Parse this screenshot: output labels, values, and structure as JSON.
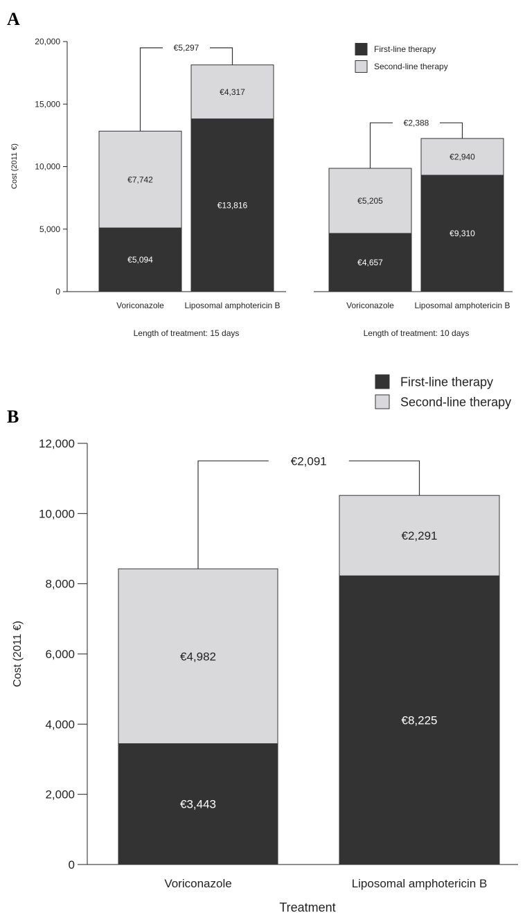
{
  "chart_data": [
    {
      "panel": "A",
      "type": "bar",
      "stacked": true,
      "ylabel": "Cost (2011 €)",
      "ylim": [
        0,
        20000
      ],
      "yticks": [
        0,
        5000,
        10000,
        15000,
        20000
      ],
      "ytick_labels": [
        "0",
        "5,000",
        "10,000",
        "15,000",
        "20,000"
      ],
      "legend_position": "top-right",
      "series": [
        {
          "name": "First-line therapy",
          "color": "#333333"
        },
        {
          "name": "Second-line therapy",
          "color": "#d9d9dc"
        }
      ],
      "groups": [
        {
          "subtitle": "Length of treatment: 15 days",
          "categories": [
            "Voriconazole",
            "Liposomal amphotericin B"
          ],
          "first_line": [
            5094,
            13816
          ],
          "second_line": [
            7742,
            4317
          ],
          "first_line_labels": [
            "€5,094",
            "€13,816"
          ],
          "second_line_labels": [
            "€7,742",
            "€4,317"
          ],
          "difference_label": "€5,297",
          "difference_level": 19500
        },
        {
          "subtitle": "Length of treatment: 10 days",
          "categories": [
            "Voriconazole",
            "Liposomal amphotericin B"
          ],
          "first_line": [
            4657,
            9310
          ],
          "second_line": [
            5205,
            2940
          ],
          "first_line_labels": [
            "€4,657",
            "€9,310"
          ],
          "second_line_labels": [
            "€5,205",
            "€2,940"
          ],
          "difference_label": "€2,388",
          "difference_level": 13500
        }
      ]
    },
    {
      "panel": "B",
      "type": "bar",
      "stacked": true,
      "xlabel": "Treatment",
      "ylabel": "Cost (2011 €)",
      "ylim": [
        0,
        12000
      ],
      "yticks": [
        0,
        2000,
        4000,
        6000,
        8000,
        10000,
        12000
      ],
      "ytick_labels": [
        "0",
        "2,000",
        "4,000",
        "6,000",
        "8,000",
        "10,000",
        "12,000"
      ],
      "legend_position": "top-right",
      "series": [
        {
          "name": "First-line therapy",
          "color": "#333333"
        },
        {
          "name": "Second-line therapy",
          "color": "#d9d9dc"
        }
      ],
      "categories": [
        "Voriconazole",
        "Liposomal amphotericin B"
      ],
      "first_line": [
        3443,
        8225
      ],
      "second_line": [
        4982,
        2291
      ],
      "first_line_labels": [
        "€3,443",
        "€8,225"
      ],
      "second_line_labels": [
        "€4,982",
        "€2,291"
      ],
      "difference_label": "€2,091",
      "difference_level": 11500
    }
  ]
}
